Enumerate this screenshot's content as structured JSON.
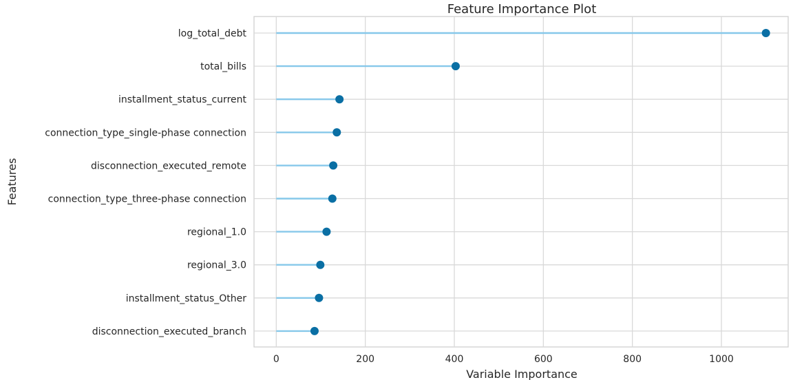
{
  "chart_data": {
    "type": "lollipop",
    "title": "Feature Importance Plot",
    "xlabel": "Variable Importance",
    "ylabel": "Features",
    "xlim": [
      -50,
      1150
    ],
    "xticks": [
      0,
      200,
      400,
      600,
      800,
      1000
    ],
    "grid": true,
    "colors": {
      "stem": "#86c8ea",
      "marker": "#0a6fa4"
    },
    "categories": [
      "log_total_debt",
      "total_bills",
      "installment_status_current",
      "connection_type_single-phase connection",
      "disconnection_executed_remote",
      "connection_type_three-phase connection",
      "regional_1.0",
      "regional_3.0",
      "installment_status_Other",
      "disconnection_executed_branch"
    ],
    "values": [
      1100,
      403,
      142,
      136,
      128,
      126,
      113,
      99,
      96,
      86
    ]
  }
}
